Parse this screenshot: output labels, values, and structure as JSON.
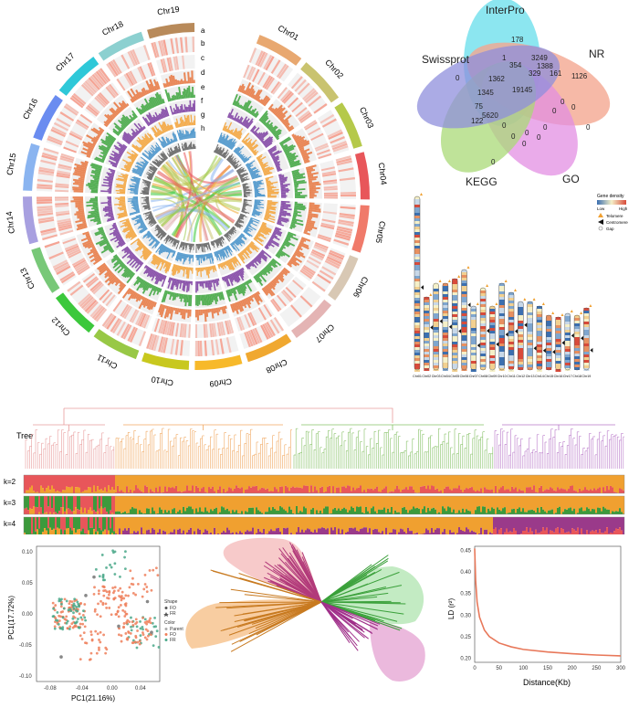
{
  "circos": {
    "chromosomes": [
      "Chr01",
      "Chr02",
      "Chr03",
      "Chr04",
      "Chr05",
      "Chr06",
      "Chr07",
      "Chr08",
      "Chr09",
      "Chr10",
      "Chr11",
      "Chr12",
      "Chr13",
      "Chr14",
      "Chr15",
      "Chr16",
      "Chr17",
      "Chr18",
      "Chr19"
    ],
    "track_labels": [
      "a",
      "b",
      "c",
      "d",
      "e",
      "f",
      "g",
      "h"
    ],
    "colors": [
      "#e8a870",
      "#c9c36f",
      "#b5c94a",
      "#e8565a",
      "#f07a6a",
      "#d8c8b4",
      "#e4b4b4",
      "#f0a830",
      "#f7b92a",
      "#c8c81e",
      "#98c846",
      "#3cc83c",
      "#78c878",
      "#a8a0e0",
      "#8ab4f0",
      "#6a8cf0",
      "#2ec8d8",
      "#8cd0d0",
      "#b88a5a"
    ]
  },
  "venn": {
    "sets": [
      "InterPro",
      "NR",
      "GO",
      "KEGG",
      "Swissprot"
    ],
    "colors": [
      "#3fd6e6",
      "#f08a6c",
      "#d86ad8",
      "#8ccc4a",
      "#6a6ad0"
    ],
    "numbers": [
      "178",
      "1126",
      "0",
      "0",
      "0",
      "3249",
      "1388",
      "354",
      "161",
      "1",
      "1362",
      "329",
      "1345",
      "19145",
      "75",
      "5620",
      "122",
      "0",
      "0",
      "0",
      "0",
      "0",
      "0",
      "0",
      "0",
      "0"
    ]
  },
  "karyotype": {
    "legend_title": "Gene density",
    "legend_low": "Low",
    "legend_high": "High",
    "legend_items": [
      "Telomere",
      "Centromere",
      "Gap"
    ],
    "chr_labels": [
      "Chr01",
      "Chr02",
      "Chr03",
      "Chr04",
      "Chr05",
      "Chr06",
      "Chr07",
      "Chr08",
      "Chr09",
      "Chr10",
      "Chr11",
      "Chr12",
      "Chr13",
      "Chr14",
      "Chr15",
      "Chr16",
      "Chr17",
      "Chr18",
      "Chr19"
    ]
  },
  "tree": {
    "label": "Tree",
    "k_labels": [
      "k=2",
      "k=3",
      "k=4"
    ]
  },
  "pca": {
    "xlabel": "PC1(21.16%)",
    "ylabel": "PC1(17.72%)",
    "x_ticks": [
      "-0.08",
      "-0.04",
      "0.00",
      "0.04"
    ],
    "y_ticks": [
      "0.10",
      "0.05",
      "0.00",
      "-0.05",
      "-0.10"
    ],
    "legend_shape_title": "Shape",
    "legend_shapes": [
      "FO",
      "FR"
    ],
    "legend_color_title": "Color",
    "legend_colors": [
      "Parent",
      "FO",
      "FR"
    ]
  },
  "ld": {
    "xlabel": "Distance(Kb)",
    "ylabel": "LD (r²)",
    "x_ticks": [
      "0",
      "50",
      "100",
      "150",
      "200",
      "250",
      "300"
    ],
    "y_ticks": [
      "0.45",
      "0.40",
      "0.35",
      "0.30",
      "0.25",
      "0.20"
    ]
  },
  "chart_data": [
    {
      "type": "line",
      "title": "",
      "xlabel": "Distance(Kb)",
      "ylabel": "LD (r²)",
      "x": [
        0,
        2,
        5,
        10,
        20,
        30,
        50,
        75,
        100,
        150,
        200,
        250,
        300
      ],
      "values": [
        0.455,
        0.38,
        0.33,
        0.295,
        0.265,
        0.25,
        0.235,
        0.226,
        0.22,
        0.214,
        0.21,
        0.207,
        0.205
      ],
      "xlim": [
        0,
        300
      ],
      "ylim": [
        0.19,
        0.46
      ]
    },
    {
      "type": "scatter",
      "xlabel": "PC1(21.16%)",
      "ylabel": "PC1(17.72%)",
      "xlim": [
        -0.09,
        0.06
      ],
      "ylim": [
        -0.11,
        0.11
      ],
      "series": [
        {
          "name": "Parent",
          "x": [
            -0.06,
            -0.03,
            0.01,
            0.045,
            0.05,
            -0.02
          ],
          "y": [
            -0.07,
            0.03,
            -0.02,
            0.02,
            -0.03,
            0.06
          ]
        },
        {
          "name": "FO",
          "x": [
            -0.07,
            -0.05,
            -0.03,
            0.0,
            0.03,
            0.04
          ],
          "y": [
            0.01,
            -0.02,
            0.03,
            -0.03,
            0.05,
            -0.04
          ]
        },
        {
          "name": "FR",
          "x": [
            -0.06,
            -0.04,
            0.0,
            0.005,
            0.04,
            0.045
          ],
          "y": [
            0.0,
            0.02,
            0.08,
            0.07,
            -0.03,
            0.05
          ]
        }
      ]
    }
  ]
}
